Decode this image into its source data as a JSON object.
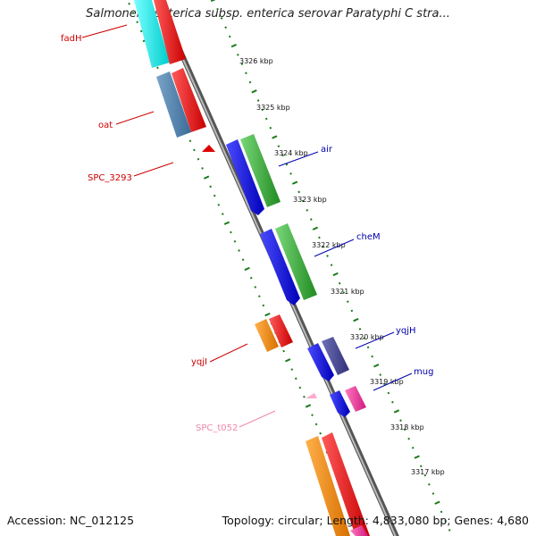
{
  "title": "Salmonella enterica subsp. enterica serovar Paratyphi C stra...",
  "footer": {
    "accession": "Accession: NC_012125",
    "summary": "Topology: circular; Length: 4,833,080 bp; Genes: 4,680"
  },
  "colors": {
    "backbone": "#8a8a8a",
    "ruler": "#1a7a1a",
    "label_red": "#cc0000",
    "label_blue": "#0000aa",
    "label_pink": "#ee88aa"
  },
  "scale": {
    "ticks": [
      "3326 kbp",
      "3325 kbp",
      "3324 kbp",
      "3323 kbp",
      "3322 kbp",
      "3321 kbp",
      "3320 kbp",
      "3319 kbp",
      "3318 kbp",
      "3317 kbp"
    ]
  },
  "genes": {
    "left_labels": [
      "fadH",
      "oat",
      "SPC_3293",
      "yqjI",
      "SPC_t052"
    ],
    "right_labels": [
      "air",
      "cheM",
      "yqjH",
      "mug"
    ]
  }
}
